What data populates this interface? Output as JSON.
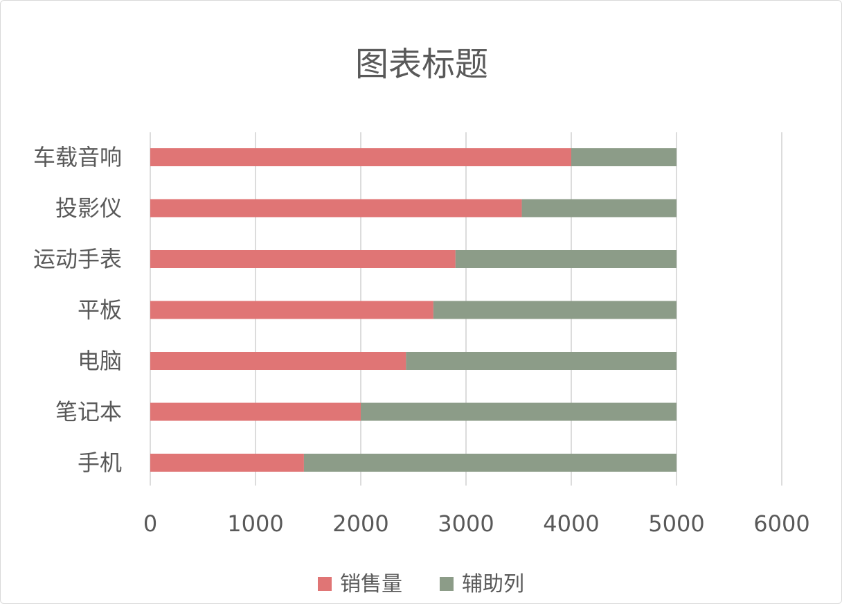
{
  "chart_data": {
    "type": "bar",
    "orientation": "horizontal",
    "stacked": true,
    "title": "图表标题",
    "categories": [
      "车载音响",
      "投影仪",
      "运动手表",
      "平板",
      "电脑",
      "笔记本",
      "手机"
    ],
    "series": [
      {
        "name": "销售量",
        "color": "#e07575",
        "values": [
          4000,
          3530,
          2900,
          2690,
          2430,
          2000,
          1460
        ]
      },
      {
        "name": "辅助列",
        "color": "#8c9c88",
        "values": [
          1000,
          1470,
          2100,
          2310,
          2570,
          3000,
          3540
        ]
      }
    ],
    "xlim": [
      0,
      6000
    ],
    "x_ticks": [
      "0",
      "1000",
      "2000",
      "3000",
      "4000",
      "5000",
      "6000"
    ],
    "grid": true,
    "legend_position": "bottom"
  }
}
